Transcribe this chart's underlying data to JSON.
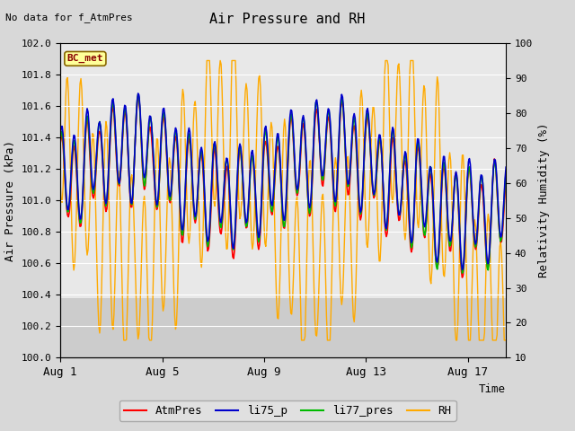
{
  "title": "Air Pressure and RH",
  "no_data_text": "No data for f_AtmPres",
  "ylabel_left": "Air Pressure (kPa)",
  "ylabel_right": "Relativity Humidity (%)",
  "xlabel": "Time",
  "ylim_left": [
    100.0,
    102.0
  ],
  "ylim_right": [
    10,
    100
  ],
  "yticks_left": [
    100.0,
    100.2,
    100.4,
    100.6,
    100.8,
    101.0,
    101.2,
    101.4,
    101.6,
    101.8,
    102.0
  ],
  "yticks_right": [
    10,
    20,
    30,
    40,
    50,
    60,
    70,
    80,
    90,
    100
  ],
  "xtick_labels": [
    "Aug 1",
    "Aug 5",
    "Aug 9",
    "Aug 13",
    "Aug 17"
  ],
  "xtick_positions": [
    0,
    4,
    8,
    12,
    16
  ],
  "xlim": [
    0,
    17.5
  ],
  "legend_labels": [
    "AtmPres",
    "li75_p",
    "li77_pres",
    "RH"
  ],
  "legend_colors": [
    "#ff0000",
    "#0000cc",
    "#00bb00",
    "#ffaa00"
  ],
  "bc_met_box_color": "#ffff99",
  "bc_met_border_color": "#886600",
  "fig_bg_color": "#d8d8d8",
  "plot_bg_upper": "#e8e8e8",
  "plot_bg_lower": "#cccccc",
  "grid_color": "#ffffff",
  "colors": {
    "AtmPres": "#ff0000",
    "li75_p": "#0000cc",
    "li77_pres": "#00bb00",
    "RH": "#ffaa00"
  },
  "n_points": 500,
  "seed": 7
}
